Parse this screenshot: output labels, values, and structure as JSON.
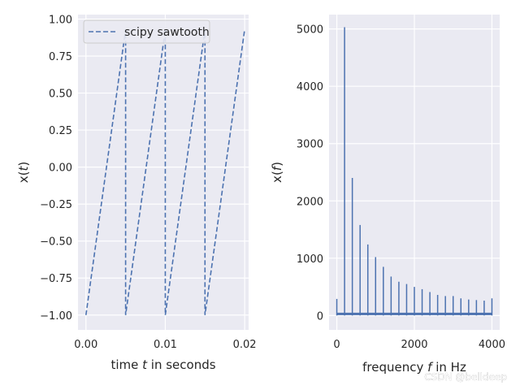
{
  "watermark": "CSDN @belldeep",
  "colors": {
    "line": "#4c72b0",
    "axes_bg": "#eaeaf2",
    "grid": "#ffffff",
    "text": "#262626"
  },
  "chart_data": [
    {
      "type": "line",
      "title": "",
      "xlabel_parts": [
        "time ",
        "t",
        " in seconds"
      ],
      "ylabel_parts": [
        "x(",
        "t",
        ")"
      ],
      "xlim": [
        -0.001,
        0.0205
      ],
      "ylim": [
        -1.1,
        1.03
      ],
      "xticks": [
        0.0,
        0.01,
        0.02
      ],
      "xtick_labels": [
        "0.00",
        "0.01",
        "0.02"
      ],
      "yticks": [
        1.0,
        0.75,
        0.5,
        0.25,
        0.0,
        -0.25,
        -0.5,
        -0.75,
        -1.0
      ],
      "ytick_labels": [
        "1.00",
        "0.75",
        "0.50",
        "0.25",
        "0.00",
        "−0.25",
        "−0.50",
        "−0.75",
        "−1.00"
      ],
      "grid": true,
      "legend": {
        "placement": "top-left",
        "entries": [
          "scipy sawtooth"
        ]
      },
      "series": [
        {
          "name": "scipy sawtooth",
          "line_style": "dashed",
          "x": [
            0.0,
            0.005,
            0.005,
            0.01,
            0.01,
            0.015,
            0.015,
            0.02
          ],
          "y": [
            -1.0,
            0.93,
            -1.0,
            0.93,
            -1.0,
            0.93,
            -1.0,
            0.93
          ]
        }
      ]
    },
    {
      "type": "line",
      "title": "",
      "xlabel_parts": [
        "frequency ",
        "f",
        " in Hz"
      ],
      "ylabel_parts": [
        "x(",
        "f",
        ")"
      ],
      "xlim": [
        -200,
        4200
      ],
      "ylim": [
        -250,
        5250
      ],
      "xticks": [
        0,
        2000,
        4000
      ],
      "xtick_labels": [
        "0",
        "2000",
        "4000"
      ],
      "yticks": [
        0,
        1000,
        2000,
        3000,
        4000,
        5000
      ],
      "ytick_labels": [
        "0",
        "1000",
        "2000",
        "3000",
        "4000",
        "5000"
      ],
      "grid": true,
      "series": [
        {
          "line_style": "solid",
          "x": [
            0,
            200,
            400,
            600,
            800,
            1000,
            1200,
            1400,
            1600,
            1800,
            2000,
            2200,
            2400,
            2600,
            2800,
            3000,
            3200,
            3400,
            3600,
            3800,
            4000
          ],
          "y": [
            290,
            5030,
            2400,
            1580,
            1240,
            1020,
            850,
            680,
            590,
            550,
            500,
            460,
            410,
            360,
            340,
            340,
            300,
            280,
            270,
            260,
            300
          ]
        }
      ]
    }
  ]
}
